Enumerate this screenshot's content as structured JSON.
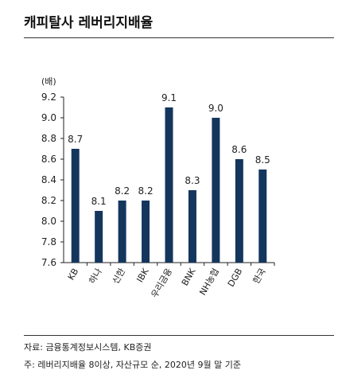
{
  "header": {
    "title": "캐피탈사 레버리지배율"
  },
  "chart_data": {
    "type": "bar",
    "title": "캐피탈사 레버리지배율",
    "ylabel": "(배)",
    "xlabel": "",
    "categories": [
      "KB",
      "하나",
      "신한",
      "IBK",
      "우리금융",
      "BNK",
      "NH농협",
      "DGB",
      "한국"
    ],
    "values": [
      8.7,
      8.1,
      8.2,
      8.2,
      9.1,
      8.3,
      9.0,
      8.6,
      8.5
    ],
    "value_labels": [
      "8.7",
      "8.1",
      "8.2",
      "8.2",
      "9.1",
      "8.3",
      "9.0",
      "8.6",
      "8.5"
    ],
    "ylim": [
      7.6,
      9.2
    ],
    "yticks": [
      "7.6",
      "7.8",
      "8.0",
      "8.2",
      "8.4",
      "8.6",
      "8.8",
      "9.0",
      "9.2"
    ],
    "grid": false,
    "legend": "none",
    "colors": {
      "bar": "#14365d",
      "axis": "#222222",
      "text": "#222222"
    }
  },
  "footer": {
    "source": "자료: 금융통계정보시스템, KB증권",
    "note": "주: 레버리지배율 8이상, 자산규모 순, 2020년 9월 말 기준"
  }
}
